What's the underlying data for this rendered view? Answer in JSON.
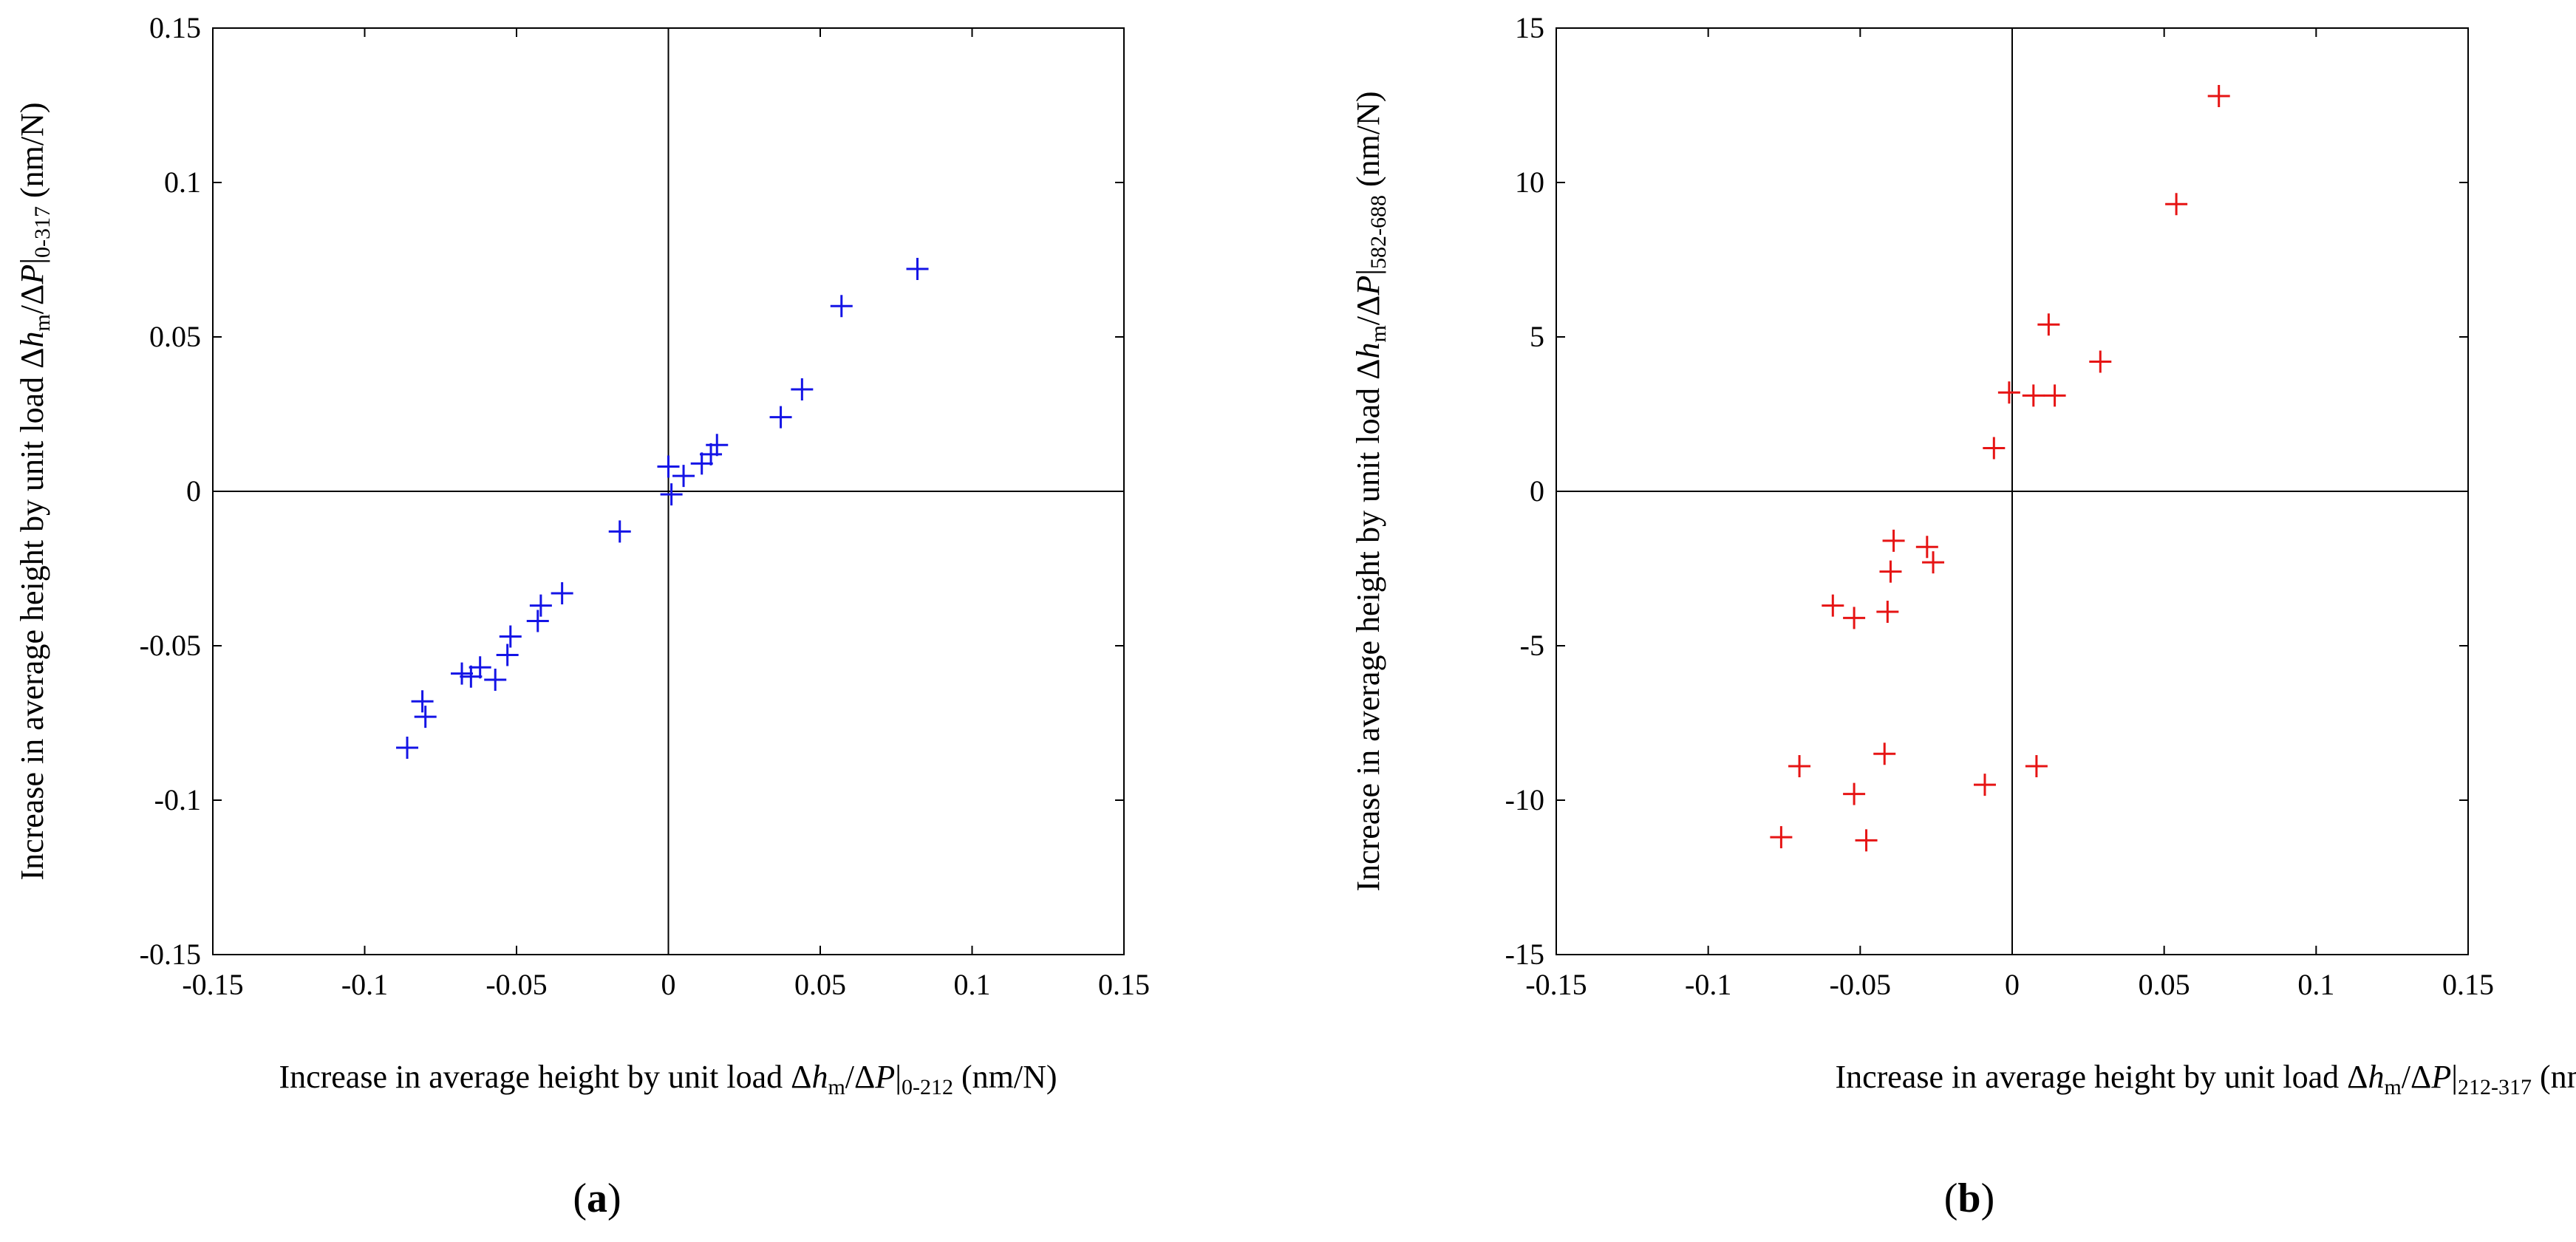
{
  "chart_data": [
    {
      "panel_label": "(a)",
      "type": "scatter",
      "marker": "plus",
      "color": "#1414e6",
      "xlim": [
        -0.15,
        0.15
      ],
      "ylim": [
        -0.15,
        0.15
      ],
      "xticks": [
        "-0.15",
        "-0.1",
        "-0.05",
        "0",
        "0.05",
        "0.1",
        "0.15"
      ],
      "yticks": [
        "-0.15",
        "-0.1",
        "-0.05",
        "0",
        "0.05",
        "0.1",
        "0.15"
      ],
      "xlabel": {
        "prefix": "Increase in average height by unit load Δ",
        "h": "h",
        "m": "m",
        "mid": "/Δ",
        "P": "P",
        "bar": "|",
        "range": "0-212",
        "unit": " (nm/N)"
      },
      "ylabel": {
        "prefix": "Increase in average height by unit load Δ",
        "h": "h",
        "m": "m",
        "mid": "/Δ",
        "P": "P",
        "bar": "|",
        "range": "0-317",
        "unit": " (nm/N)"
      },
      "grid": false,
      "zero_lines": true,
      "points": [
        [
          -0.086,
          -0.083
        ],
        [
          -0.081,
          -0.068
        ],
        [
          -0.08,
          -0.073
        ],
        [
          -0.068,
          -0.059
        ],
        [
          -0.065,
          -0.06
        ],
        [
          -0.062,
          -0.057
        ],
        [
          -0.057,
          -0.061
        ],
        [
          -0.053,
          -0.053
        ],
        [
          -0.052,
          -0.047
        ],
        [
          -0.043,
          -0.042
        ],
        [
          -0.042,
          -0.037
        ],
        [
          -0.035,
          -0.033
        ],
        [
          -0.016,
          -0.013
        ],
        [
          0.0,
          0.008
        ],
        [
          0.001,
          -0.001
        ],
        [
          0.005,
          0.005
        ],
        [
          0.011,
          0.009
        ],
        [
          0.014,
          0.012
        ],
        [
          0.016,
          0.015
        ],
        [
          0.037,
          0.024
        ],
        [
          0.044,
          0.033
        ],
        [
          0.057,
          0.06
        ],
        [
          0.082,
          0.072
        ]
      ]
    },
    {
      "panel_label": "(b)",
      "type": "scatter",
      "marker": "plus",
      "color": "#e61414",
      "xlim": [
        -0.15,
        0.15
      ],
      "ylim": [
        -15,
        15
      ],
      "xticks": [
        "-0.15",
        "-0.1",
        "-0.05",
        "0",
        "0.05",
        "0.1",
        "0.15"
      ],
      "yticks": [
        "-15",
        "-10",
        "-5",
        "0",
        "5",
        "10",
        "15"
      ],
      "xlabel": {
        "prefix": "Increase in average height by unit load Δ",
        "h": "h",
        "m": "m",
        "mid": "/Δ",
        "P": "P",
        "bar": "|",
        "range": "212-317",
        "unit": " (nm/N)"
      },
      "ylabel": {
        "prefix": "Increase in average height by unit load Δ",
        "h": "h",
        "m": "m",
        "mid": "/Δ",
        "P": "P",
        "bar": "|",
        "range": "582-688",
        "unit": " (nm/N)"
      },
      "grid": false,
      "zero_lines": true,
      "points": [
        [
          -0.076,
          -11.2
        ],
        [
          -0.07,
          -8.9
        ],
        [
          -0.059,
          -3.7
        ],
        [
          -0.052,
          -4.1
        ],
        [
          -0.052,
          -9.8
        ],
        [
          -0.048,
          -11.3
        ],
        [
          -0.042,
          -8.5
        ],
        [
          -0.041,
          -3.9
        ],
        [
          -0.04,
          -2.6
        ],
        [
          -0.039,
          -1.6
        ],
        [
          -0.028,
          -1.8
        ],
        [
          -0.026,
          -2.3
        ],
        [
          -0.009,
          -9.5
        ],
        [
          -0.006,
          1.4
        ],
        [
          -0.001,
          3.2
        ],
        [
          0.007,
          3.1
        ],
        [
          0.008,
          -8.9
        ],
        [
          0.012,
          5.4
        ],
        [
          0.014,
          3.1
        ],
        [
          0.029,
          4.2
        ],
        [
          0.054,
          9.3
        ],
        [
          0.068,
          12.8
        ]
      ]
    }
  ]
}
